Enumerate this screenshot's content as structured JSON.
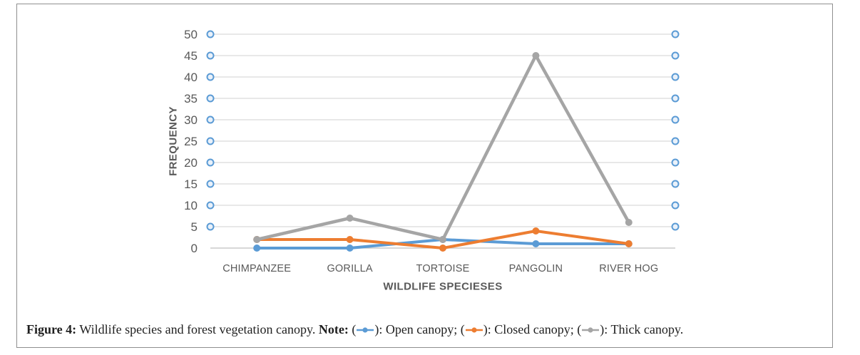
{
  "figure": {
    "caption": {
      "figure_label": "Figure 4:",
      "text": "Wildlife species and forest vegetation canopy.",
      "note_label": "Note:",
      "legend": [
        {
          "name": "Open canopy",
          "color": "#5B9BD5"
        },
        {
          "name": "Closed canopy",
          "color": "#ED7D31"
        },
        {
          "name": "Thick canopy",
          "color": "#A5A5A5"
        }
      ]
    }
  },
  "chart_data": {
    "type": "line",
    "title": "",
    "xlabel": "WILDLIFE SPECIESES",
    "ylabel": "FREQUENCY",
    "categories": [
      "CHIMPANZEE",
      "GORILLA",
      "TORTOISE",
      "PANGOLIN",
      "RIVER HOG"
    ],
    "series": [
      {
        "name": "Open canopy",
        "color": "#5B9BD5",
        "values": [
          0,
          0,
          2,
          1,
          1
        ]
      },
      {
        "name": "Closed canopy",
        "color": "#ED7D31",
        "values": [
          2,
          2,
          0,
          4,
          1
        ]
      },
      {
        "name": "Thick canopy",
        "color": "#A5A5A5",
        "values": [
          2,
          7,
          2,
          45,
          6
        ]
      }
    ],
    "ylim": [
      0,
      50
    ],
    "ytick_step": 5,
    "grid": true,
    "gridline_color": "#D9D9D9",
    "baseline_color": "#BFBFBF",
    "axis_end_marker": "open-circle",
    "axis_end_marker_stroke": "#5B9BD5",
    "axis_end_marker_fill": "#E9F1FA",
    "legend_position": "caption-note"
  }
}
